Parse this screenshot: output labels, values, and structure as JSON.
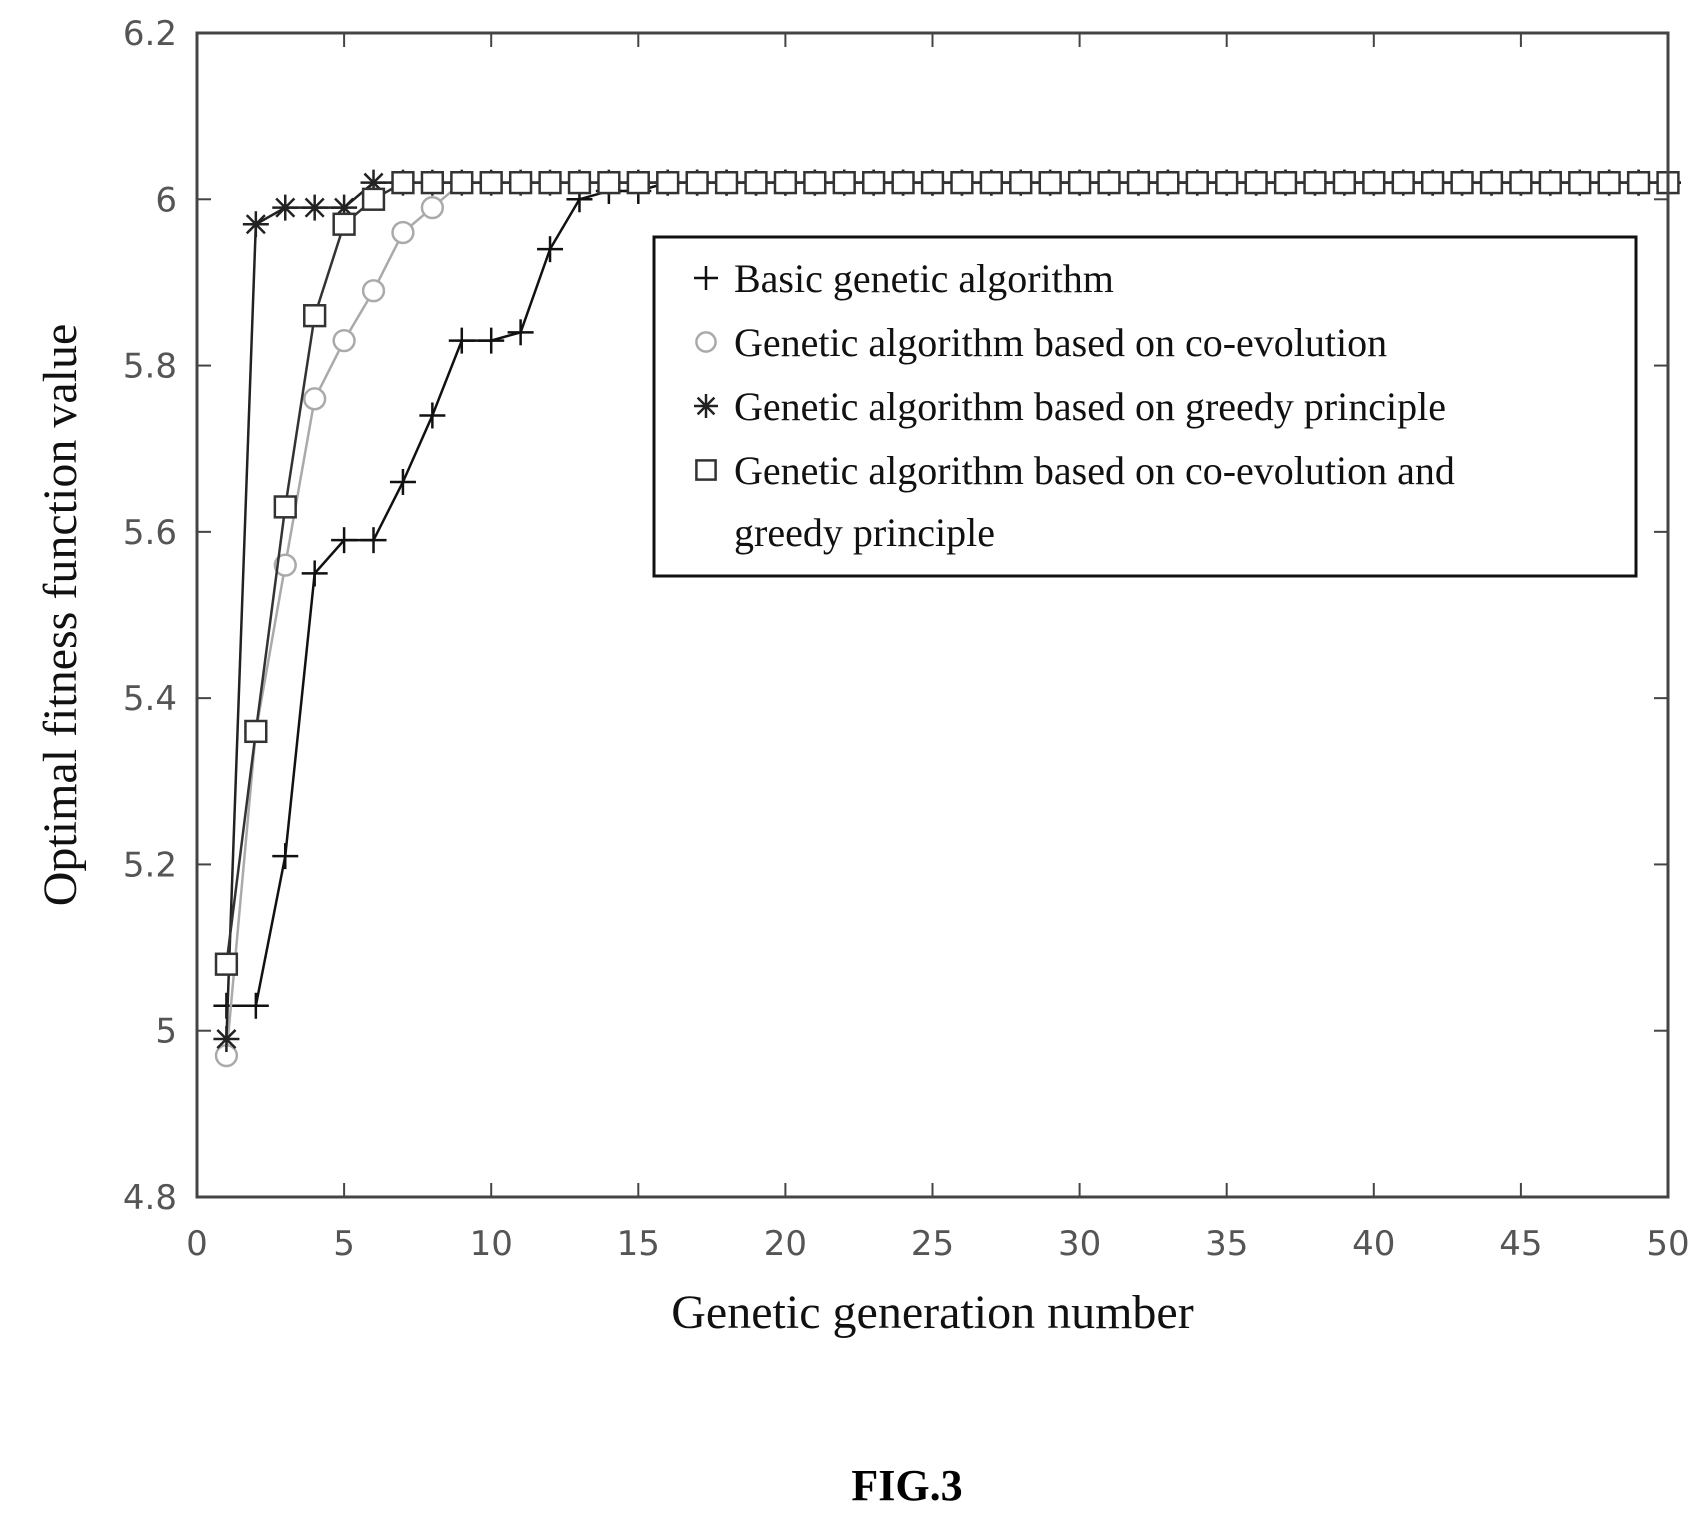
{
  "chart_data": {
    "type": "line",
    "xlabel": "Genetic generation number",
    "ylabel": "Optimal fitness function value",
    "xlim": [
      0,
      50
    ],
    "ylim": [
      4.8,
      6.2
    ],
    "xticks": [
      0,
      5,
      10,
      15,
      20,
      25,
      30,
      35,
      40,
      45,
      50
    ],
    "yticks": [
      4.8,
      5,
      5.2,
      5.4,
      5.6,
      5.8,
      6,
      6.2
    ],
    "ytick_labels": [
      "4.8",
      "5",
      "5.2",
      "5.4",
      "5.6",
      "5.8",
      "6",
      "6.2"
    ],
    "grid": false,
    "legend_position": "upper-right",
    "series": [
      {
        "name": "Basic genetic algorithm",
        "marker": "plus",
        "color": "#111111",
        "x": [
          1,
          2,
          3,
          4,
          5,
          6,
          7,
          8,
          9,
          10,
          11,
          12,
          13,
          14,
          15,
          16,
          17,
          18,
          19,
          20,
          21,
          22,
          23,
          24,
          25,
          26,
          27,
          28,
          29,
          30,
          31,
          32,
          33,
          34,
          35,
          36,
          37,
          38,
          39,
          40,
          41,
          42,
          43,
          44,
          45,
          46,
          47,
          48,
          49,
          50
        ],
        "y": [
          5.03,
          5.03,
          5.21,
          5.55,
          5.59,
          5.59,
          5.66,
          5.74,
          5.83,
          5.83,
          5.84,
          5.94,
          6.0,
          6.01,
          6.01,
          6.02,
          6.02,
          6.02,
          6.02,
          6.02,
          6.02,
          6.02,
          6.02,
          6.02,
          6.02,
          6.02,
          6.02,
          6.02,
          6.02,
          6.02,
          6.02,
          6.02,
          6.02,
          6.02,
          6.02,
          6.02,
          6.02,
          6.02,
          6.02,
          6.02,
          6.02,
          6.02,
          6.02,
          6.02,
          6.02,
          6.02,
          6.02,
          6.02,
          6.02,
          6.02
        ]
      },
      {
        "name": "Genetic algorithm based on co-evolution",
        "marker": "circle",
        "color": "#aaaaaa",
        "x": [
          1,
          2,
          3,
          4,
          5,
          6,
          7,
          8,
          9,
          10,
          11,
          12,
          13,
          14,
          15,
          16,
          17,
          18,
          19,
          20,
          21,
          22,
          23,
          24,
          25,
          26,
          27,
          28,
          29,
          30,
          31,
          32,
          33,
          34,
          35,
          36,
          37,
          38,
          39,
          40,
          41,
          42,
          43,
          44,
          45,
          46,
          47,
          48,
          49,
          50
        ],
        "y": [
          4.97,
          5.36,
          5.56,
          5.76,
          5.83,
          5.89,
          5.96,
          5.99,
          6.02,
          6.02,
          6.02,
          6.02,
          6.02,
          6.02,
          6.02,
          6.02,
          6.02,
          6.02,
          6.02,
          6.02,
          6.02,
          6.02,
          6.02,
          6.02,
          6.02,
          6.02,
          6.02,
          6.02,
          6.02,
          6.02,
          6.02,
          6.02,
          6.02,
          6.02,
          6.02,
          6.02,
          6.02,
          6.02,
          6.02,
          6.02,
          6.02,
          6.02,
          6.02,
          6.02,
          6.02,
          6.02,
          6.02,
          6.02,
          6.02,
          6.02
        ]
      },
      {
        "name": "Genetic algorithm based on greedy principle",
        "marker": "star",
        "color": "#222222",
        "x": [
          1,
          2,
          3,
          4,
          5,
          6,
          7,
          8,
          9,
          10,
          11,
          12,
          13,
          14,
          15,
          16,
          17,
          18,
          19,
          20,
          21,
          22,
          23,
          24,
          25,
          26,
          27,
          28,
          29,
          30,
          31,
          32,
          33,
          34,
          35,
          36,
          37,
          38,
          39,
          40,
          41,
          42,
          43,
          44,
          45,
          46,
          47,
          48,
          49,
          50
        ],
        "y": [
          4.99,
          5.97,
          5.99,
          5.99,
          5.99,
          6.02,
          6.02,
          6.02,
          6.02,
          6.02,
          6.02,
          6.02,
          6.02,
          6.02,
          6.02,
          6.02,
          6.02,
          6.02,
          6.02,
          6.02,
          6.02,
          6.02,
          6.02,
          6.02,
          6.02,
          6.02,
          6.02,
          6.02,
          6.02,
          6.02,
          6.02,
          6.02,
          6.02,
          6.02,
          6.02,
          6.02,
          6.02,
          6.02,
          6.02,
          6.02,
          6.02,
          6.02,
          6.02,
          6.02,
          6.02,
          6.02,
          6.02,
          6.02,
          6.02,
          6.02
        ]
      },
      {
        "name": "Genetic algorithm based on co-evolution and greedy principle",
        "legend_lines": [
          "Genetic algorithm based on co-evolution and",
          "greedy principle"
        ],
        "marker": "square",
        "color": "#333333",
        "x": [
          1,
          2,
          3,
          4,
          5,
          6,
          7,
          8,
          9,
          10,
          11,
          12,
          13,
          14,
          15,
          16,
          17,
          18,
          19,
          20,
          21,
          22,
          23,
          24,
          25,
          26,
          27,
          28,
          29,
          30,
          31,
          32,
          33,
          34,
          35,
          36,
          37,
          38,
          39,
          40,
          41,
          42,
          43,
          44,
          45,
          46,
          47,
          48,
          49,
          50
        ],
        "y": [
          5.08,
          5.36,
          5.63,
          5.86,
          5.97,
          6.0,
          6.02,
          6.02,
          6.02,
          6.02,
          6.02,
          6.02,
          6.02,
          6.02,
          6.02,
          6.02,
          6.02,
          6.02,
          6.02,
          6.02,
          6.02,
          6.02,
          6.02,
          6.02,
          6.02,
          6.02,
          6.02,
          6.02,
          6.02,
          6.02,
          6.02,
          6.02,
          6.02,
          6.02,
          6.02,
          6.02,
          6.02,
          6.02,
          6.02,
          6.02,
          6.02,
          6.02,
          6.02,
          6.02,
          6.02,
          6.02,
          6.02,
          6.02,
          6.02,
          6.02
        ]
      }
    ]
  },
  "figure_label": "FIG.3"
}
